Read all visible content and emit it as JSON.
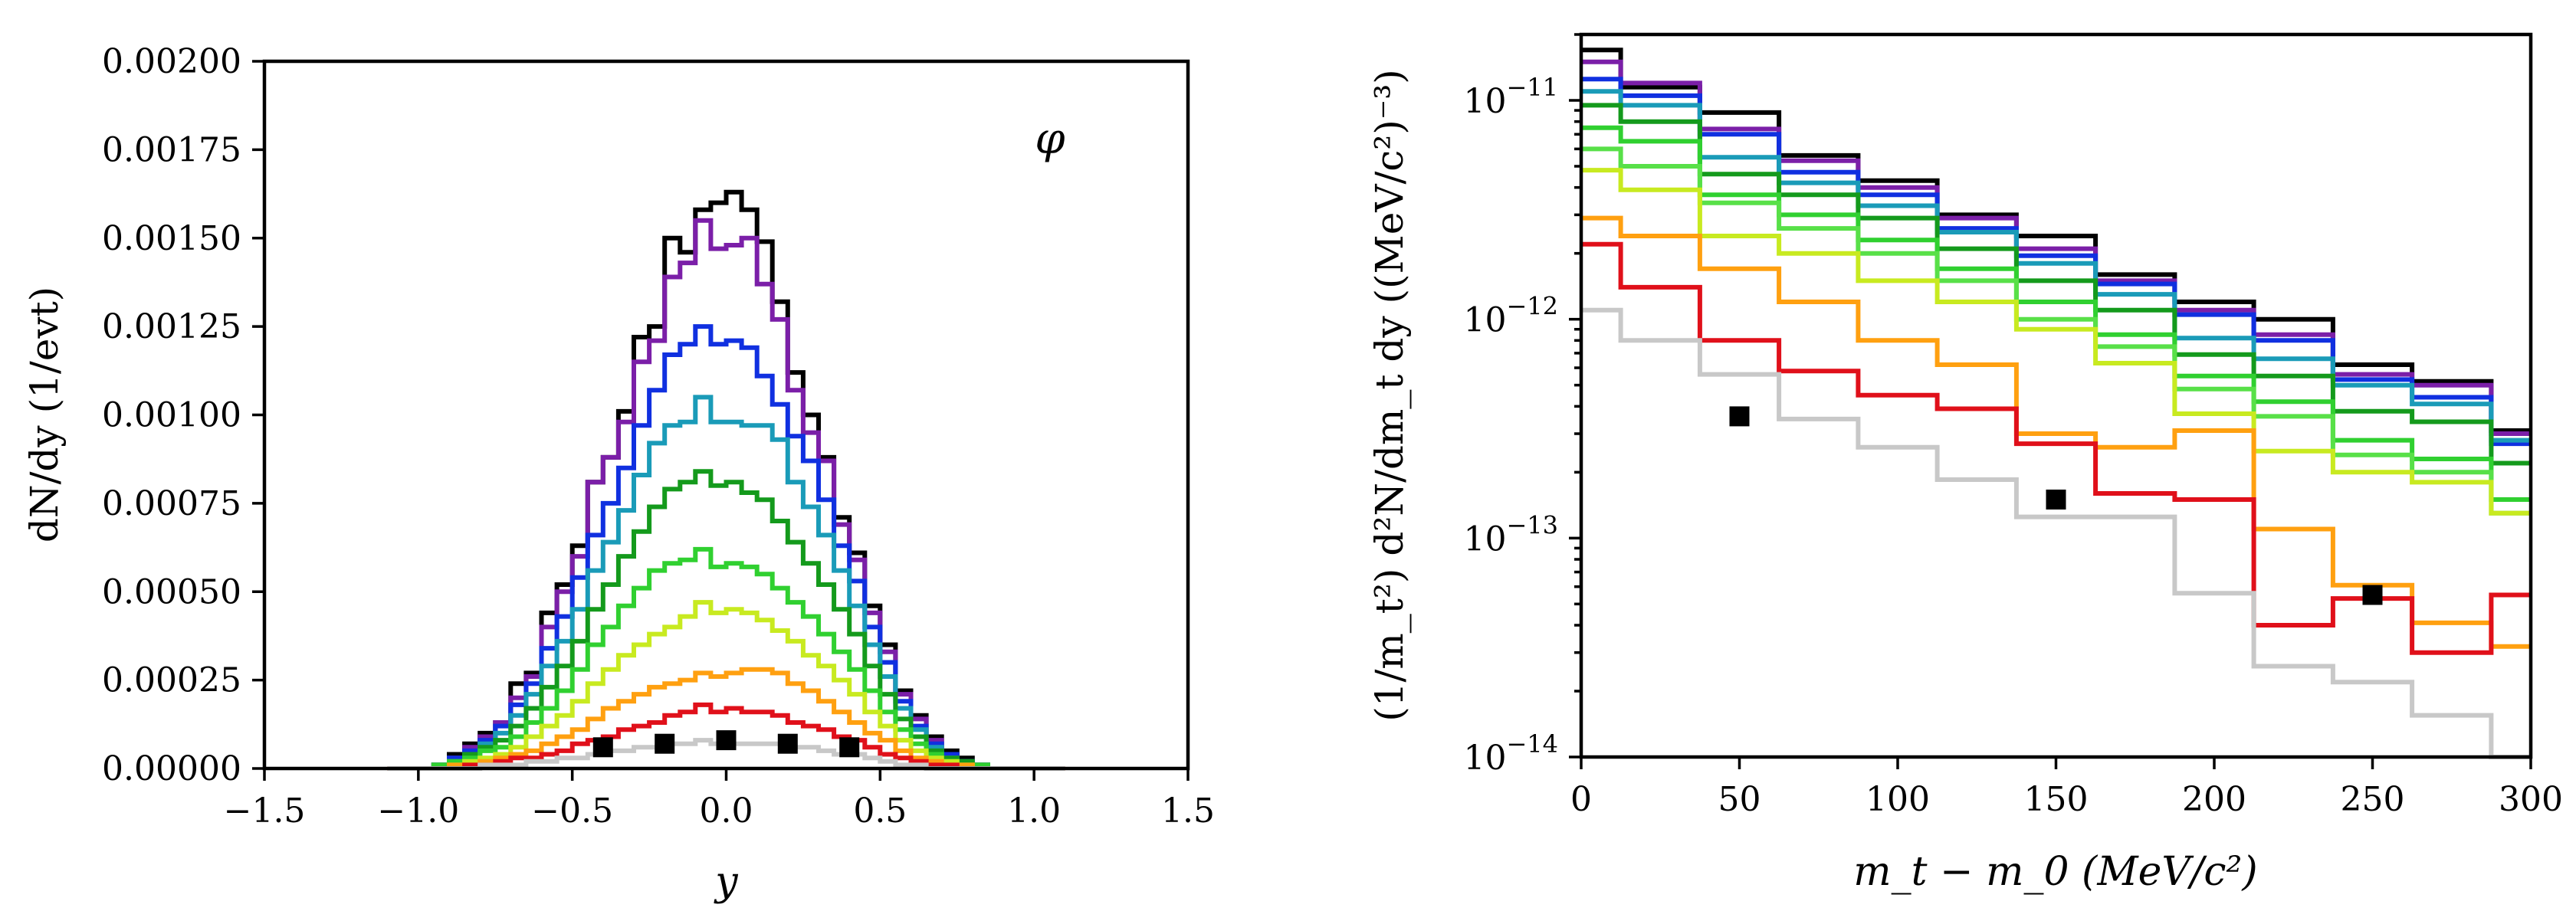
{
  "chart_data": [
    {
      "type": "line",
      "drawstyle": "steps",
      "yscale": "linear",
      "annotation": "φ",
      "xlabel": "y",
      "ylabel": "dN/dy (1/evt)",
      "xlim": [
        -1.5,
        1.5
      ],
      "ylim": [
        0,
        0.002
      ],
      "xticks": [
        -1.5,
        -1.0,
        -0.5,
        0.0,
        0.5,
        1.0,
        1.5
      ],
      "xtick_labels": [
        "−1.5",
        "−1.0",
        "−0.5",
        "0.0",
        "0.5",
        "1.0",
        "1.5"
      ],
      "yticks": [
        0,
        0.00025,
        0.0005,
        0.00075,
        0.001,
        0.00125,
        0.0015,
        0.00175,
        0.002
      ],
      "ytick_labels": [
        "0.00000",
        "0.00025",
        "0.00050",
        "0.00075",
        "0.00100",
        "0.00125",
        "0.00150",
        "0.00175",
        "0.00200"
      ],
      "bin_edges": [
        -1.1,
        -1.05,
        -1.0,
        -0.95,
        -0.9,
        -0.85,
        -0.8,
        -0.75,
        -0.7,
        -0.65,
        -0.6,
        -0.55,
        -0.5,
        -0.45,
        -0.4,
        -0.35,
        -0.3,
        -0.25,
        -0.2,
        -0.15,
        -0.1,
        -0.05,
        0.0,
        0.05,
        0.1,
        0.15,
        0.2,
        0.25,
        0.3,
        0.35,
        0.4,
        0.45,
        0.5,
        0.55,
        0.6,
        0.65,
        0.7,
        0.75,
        0.8,
        0.85,
        0.9,
        0.95,
        1.0,
        1.05,
        1.1
      ],
      "series": [
        {
          "name": "black",
          "color": "#000000",
          "values": [
            0,
            0,
            0,
            1e-05,
            4e-05,
            7e-05,
            0.0001,
            0.00013,
            0.00024,
            0.00027,
            0.00044,
            0.00052,
            0.00063,
            0.00081,
            0.00088,
            0.00101,
            0.00122,
            0.00125,
            0.0015,
            0.00146,
            0.00158,
            0.0016,
            0.00163,
            0.00158,
            0.00149,
            0.00132,
            0.00112,
            0.001,
            0.00088,
            0.00071,
            0.00061,
            0.00046,
            0.00035,
            0.00022,
            0.00015,
            9e-05,
            5e-05,
            3e-05,
            1e-05,
            0,
            0,
            0,
            0,
            0
          ]
        },
        {
          "name": "purple",
          "color": "#7b1fa8",
          "values": [
            0,
            0,
            0,
            1e-05,
            3e-05,
            6e-05,
            9e-05,
            0.00013,
            0.0002,
            0.00026,
            0.0004,
            0.0005,
            0.0006,
            0.00081,
            0.00088,
            0.00098,
            0.00115,
            0.00121,
            0.00139,
            0.00143,
            0.00155,
            0.00147,
            0.00148,
            0.0015,
            0.00137,
            0.00127,
            0.00107,
            0.00095,
            0.00087,
            0.00069,
            0.00059,
            0.00044,
            0.00033,
            0.00021,
            0.00014,
            8e-05,
            4e-05,
            2e-05,
            1e-05,
            0,
            0,
            0,
            0,
            0
          ]
        },
        {
          "name": "blue",
          "color": "#1030e0",
          "values": [
            0,
            0,
            0,
            1e-05,
            3e-05,
            5e-05,
            8e-05,
            0.00012,
            0.00018,
            0.00024,
            0.00034,
            0.00043,
            0.00054,
            0.00066,
            0.00075,
            0.00085,
            0.00097,
            0.00107,
            0.00117,
            0.0012,
            0.00125,
            0.0012,
            0.00121,
            0.00119,
            0.00111,
            0.00103,
            0.00094,
            0.00087,
            0.00076,
            0.00063,
            0.00053,
            0.0004,
            0.0003,
            0.00019,
            0.00012,
            7e-05,
            4e-05,
            2e-05,
            1e-05,
            0,
            0,
            0,
            0,
            0
          ]
        },
        {
          "name": "teal",
          "color": "#1a9bb8",
          "values": [
            0,
            0,
            0,
            1e-05,
            2e-05,
            4e-05,
            7e-05,
            0.0001,
            0.00015,
            0.00021,
            0.00029,
            0.00036,
            0.00045,
            0.00056,
            0.00064,
            0.00073,
            0.00083,
            0.00092,
            0.00097,
            0.00098,
            0.00105,
            0.00098,
            0.00098,
            0.00097,
            0.00097,
            0.00093,
            0.00081,
            0.00074,
            0.00066,
            0.00056,
            0.00046,
            0.00035,
            0.00026,
            0.00017,
            0.00011,
            6e-05,
            3e-05,
            2e-05,
            1e-05,
            0,
            0,
            0,
            0,
            0
          ]
        },
        {
          "name": "dark green",
          "color": "#149a1c",
          "values": [
            0,
            0,
            0,
            1e-05,
            2e-05,
            4e-05,
            6e-05,
            8e-05,
            0.00012,
            0.00017,
            0.00023,
            0.00029,
            0.00036,
            0.00045,
            0.00052,
            0.0006,
            0.00067,
            0.00074,
            0.00079,
            0.00081,
            0.00084,
            0.0008,
            0.00081,
            0.00078,
            0.00076,
            0.0007,
            0.00064,
            0.00058,
            0.00052,
            0.00045,
            0.00038,
            0.00029,
            0.00021,
            0.00014,
            9e-05,
            5e-05,
            3e-05,
            2e-05,
            1e-05,
            0,
            0,
            0,
            0,
            0
          ]
        },
        {
          "name": "green",
          "color": "#30d030",
          "values": [
            0,
            0,
            0,
            1e-05,
            2e-05,
            3e-05,
            5e-05,
            6e-05,
            9e-05,
            0.00013,
            0.00017,
            0.00022,
            0.00028,
            0.00035,
            0.0004,
            0.00046,
            0.00051,
            0.00056,
            0.00058,
            0.00059,
            0.00062,
            0.00057,
            0.00058,
            0.00057,
            0.00055,
            0.00051,
            0.00047,
            0.00043,
            0.00038,
            0.00033,
            0.00028,
            0.00022,
            0.00016,
            0.00011,
            7e-05,
            4e-05,
            2e-05,
            1e-05,
            1e-05,
            0,
            0,
            0,
            0,
            0
          ]
        },
        {
          "name": "yellow-green",
          "color": "#c8ea20",
          "values": [
            0,
            0,
            0,
            0,
            1e-05,
            2e-05,
            3e-05,
            4e-05,
            6e-05,
            9e-05,
            0.00012,
            0.00015,
            0.00019,
            0.00024,
            0.00028,
            0.00032,
            0.00035,
            0.00038,
            0.0004,
            0.00043,
            0.00047,
            0.00044,
            0.00045,
            0.00044,
            0.00042,
            0.00039,
            0.00036,
            0.00032,
            0.00029,
            0.00025,
            0.00021,
            0.00016,
            0.00012,
            8e-05,
            5e-05,
            3e-05,
            2e-05,
            1e-05,
            0,
            0,
            0,
            0,
            0,
            0
          ]
        },
        {
          "name": "orange",
          "color": "#ffa010",
          "values": [
            0,
            0,
            0,
            0,
            1e-05,
            1e-05,
            2e-05,
            3e-05,
            4e-05,
            5e-05,
            7e-05,
            9e-05,
            0.00011,
            0.00014,
            0.00017,
            0.00019,
            0.00021,
            0.00023,
            0.00024,
            0.00025,
            0.00027,
            0.00026,
            0.00027,
            0.00028,
            0.00028,
            0.00027,
            0.00024,
            0.00022,
            0.00019,
            0.00016,
            0.00013,
            0.0001,
            8e-05,
            5e-05,
            3e-05,
            2e-05,
            1e-05,
            1e-05,
            0,
            0,
            0,
            0,
            0,
            0
          ]
        },
        {
          "name": "red",
          "color": "#e0101a",
          "values": [
            0,
            0,
            0,
            0,
            0,
            1e-05,
            1e-05,
            2e-05,
            3e-05,
            3e-05,
            4e-05,
            5e-05,
            7e-05,
            8e-05,
            9e-05,
            0.00011,
            0.00012,
            0.00013,
            0.00015,
            0.00016,
            0.00018,
            0.00016,
            0.00017,
            0.00016,
            0.00016,
            0.00015,
            0.00013,
            0.00012,
            0.00011,
            9e-05,
            8e-05,
            6e-05,
            4e-05,
            3e-05,
            2e-05,
            1e-05,
            1e-05,
            0,
            0,
            0,
            0,
            0,
            0,
            0
          ]
        },
        {
          "name": "light gray",
          "color": "#c8c8c8",
          "values": [
            0,
            0,
            0,
            0,
            0,
            0,
            1e-05,
            1e-05,
            1e-05,
            2e-05,
            2e-05,
            3e-05,
            3e-05,
            4e-05,
            5e-05,
            5e-05,
            6e-05,
            6e-05,
            7e-05,
            7e-05,
            8e-05,
            7e-05,
            7e-05,
            7e-05,
            7e-05,
            7e-05,
            6e-05,
            6e-05,
            5e-05,
            4e-05,
            4e-05,
            3e-05,
            2e-05,
            1e-05,
            1e-05,
            0,
            0,
            0,
            0,
            0,
            0,
            0,
            0,
            0
          ]
        }
      ],
      "markers": {
        "shape": "square",
        "color": "#000000",
        "x": [
          -0.4,
          -0.2,
          0.0,
          0.2,
          0.4
        ],
        "y": [
          6e-05,
          7e-05,
          8e-05,
          7e-05,
          6e-05
        ]
      }
    },
    {
      "type": "line",
      "drawstyle": "steps",
      "yscale": "log",
      "xlabel": "m_t − m_0 (MeV/c²)",
      "ylabel": "(1/m_t²) d²N/dm_t dy ((MeV/c²)⁻³)",
      "xlim": [
        0,
        300
      ],
      "ylim": [
        1e-14,
        2e-11
      ],
      "xticks": [
        0,
        50,
        100,
        150,
        200,
        250,
        300
      ],
      "xtick_labels": [
        "0",
        "50",
        "100",
        "150",
        "200",
        "250",
        "300"
      ],
      "ytick_decades": [
        -14,
        -13,
        -12,
        -11
      ],
      "ytick_labels": [
        {
          "base": "10",
          "exp": "−14"
        },
        {
          "base": "10",
          "exp": "−13"
        },
        {
          "base": "10",
          "exp": "−12"
        },
        {
          "base": "10",
          "exp": "−11"
        }
      ],
      "bin_edges": [
        0,
        12.5,
        37.5,
        62.5,
        87.5,
        112.5,
        137.5,
        162.5,
        187.5,
        212.5,
        237.5,
        262.5,
        287.5,
        300
      ],
      "series": [
        {
          "name": "black",
          "color": "#000000",
          "values": [
            1.7e-11,
            1.15e-11,
            8.8e-12,
            5.6e-12,
            4.3e-12,
            3e-12,
            2.4e-12,
            1.6e-12,
            1.2e-12,
            1e-12,
            6.2e-13,
            5.2e-13,
            3.1e-13
          ]
        },
        {
          "name": "purple",
          "color": "#7b1fa8",
          "values": [
            1.5e-11,
            1.2e-11,
            7.4e-12,
            5.3e-12,
            4e-12,
            2.9e-12,
            2.1e-12,
            1.5e-12,
            1.1e-12,
            8.5e-13,
            5.6e-13,
            5e-13,
            3e-13
          ]
        },
        {
          "name": "blue",
          "color": "#1030e0",
          "values": [
            1.25e-11,
            1.05e-11,
            7e-12,
            4.7e-12,
            3.7e-12,
            2.6e-12,
            1.95e-12,
            1.45e-12,
            1.05e-12,
            8e-13,
            5.3e-13,
            4.4e-13,
            2.7e-13
          ]
        },
        {
          "name": "teal",
          "color": "#1a9bb8",
          "values": [
            1.1e-11,
            9.5e-12,
            5.5e-12,
            4.2e-12,
            3.3e-12,
            2.5e-12,
            1.8e-12,
            1.3e-12,
            8.2e-13,
            6.6e-13,
            5e-13,
            4.1e-13,
            2.8e-13
          ]
        },
        {
          "name": "dark green",
          "color": "#149a1c",
          "values": [
            9.5e-12,
            8e-12,
            4.6e-12,
            3.7e-12,
            2.9e-12,
            2.1e-12,
            1.5e-12,
            1.1e-12,
            6.9e-13,
            5.5e-13,
            3.8e-13,
            3.4e-13,
            2.2e-13
          ]
        },
        {
          "name": "green",
          "color": "#30d030",
          "values": [
            7.5e-12,
            6.5e-12,
            3.7e-12,
            3e-12,
            2.3e-12,
            1.7e-12,
            1.2e-12,
            8.5e-13,
            5.5e-13,
            4.2e-13,
            2.8e-13,
            2.3e-13,
            1.5e-13
          ]
        },
        {
          "name": "medium green",
          "color": "#58e048",
          "values": [
            6e-12,
            5e-12,
            3.4e-12,
            2.6e-12,
            2e-12,
            1.5e-12,
            1e-12,
            7.5e-13,
            4.8e-13,
            3.6e-13,
            2.4e-13,
            2e-13,
            1.3e-13
          ]
        },
        {
          "name": "yellow-green",
          "color": "#c8ea20",
          "values": [
            4.8e-12,
            3.9e-12,
            2.4e-12,
            2e-12,
            1.5e-12,
            1.2e-12,
            9e-13,
            6.3e-13,
            3.7e-13,
            2.5e-13,
            2e-13,
            1.8e-13,
            1.3e-13
          ]
        },
        {
          "name": "orange",
          "color": "#ffa010",
          "values": [
            2.9e-12,
            2.4e-12,
            1.7e-12,
            1.2e-12,
            8e-13,
            6.2e-13,
            3e-13,
            2.6e-13,
            3.1e-13,
            1.1e-13,
            6.1e-14,
            4.1e-14,
            3.2e-14
          ]
        },
        {
          "name": "red",
          "color": "#e0101a",
          "values": [
            2.2e-12,
            1.4e-12,
            8e-13,
            5.8e-13,
            4.5e-13,
            3.9e-13,
            2.7e-13,
            1.6e-13,
            1.5e-13,
            4e-14,
            5.3e-14,
            3e-14,
            5.5e-14
          ]
        },
        {
          "name": "light gray",
          "color": "#c8c8c8",
          "values": [
            1.1e-12,
            8e-13,
            5.6e-13,
            3.5e-13,
            2.6e-13,
            1.85e-13,
            1.25e-13,
            1.25e-13,
            5.6e-14,
            2.6e-14,
            2.2e-14,
            1.55e-14,
            1e-14
          ]
        }
      ],
      "markers": {
        "shape": "square",
        "color": "#000000",
        "x": [
          50,
          150,
          250
        ],
        "y": [
          3.6e-13,
          1.5e-13,
          5.5e-14
        ]
      }
    }
  ]
}
